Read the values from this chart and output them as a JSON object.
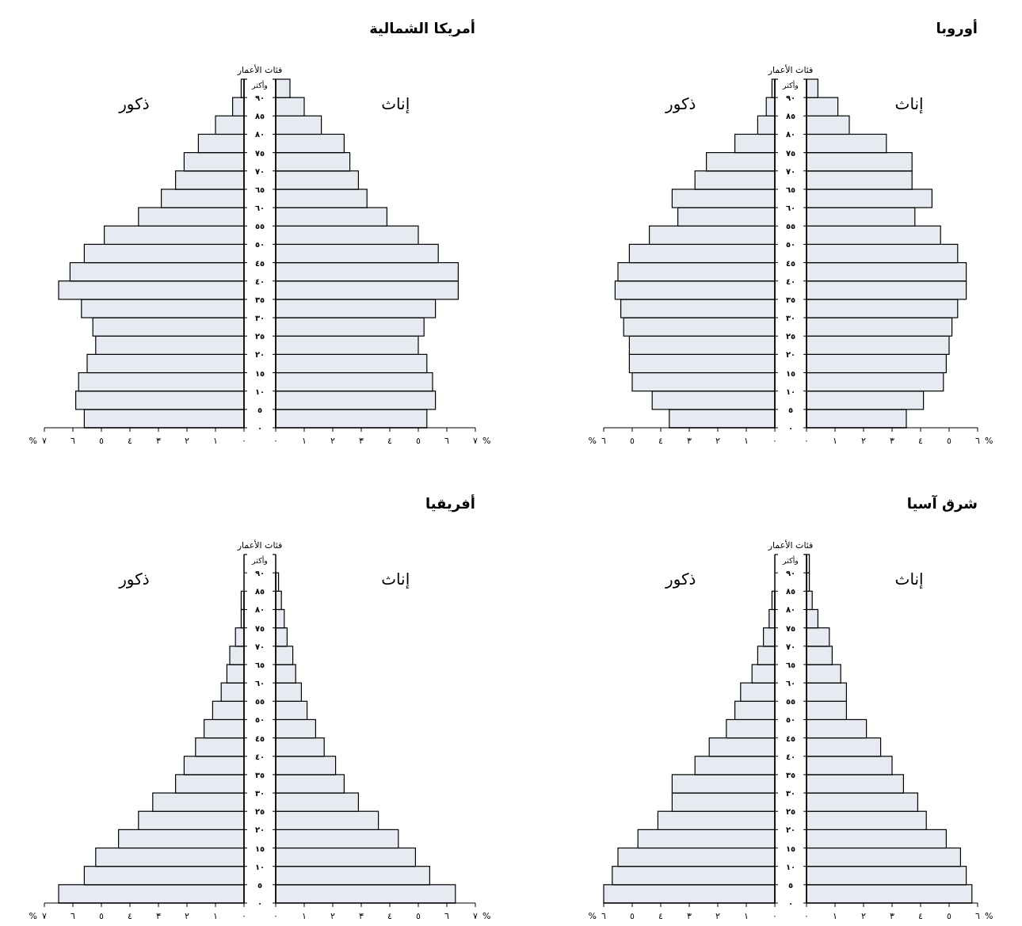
{
  "chart_data": [
    {
      "type": "histogram",
      "orientation": "horizontal",
      "xlabel": "%",
      "tick_labels": "x",
      "bins": [
        0,
        5,
        10,
        15,
        20,
        25,
        30,
        35,
        40,
        45,
        50,
        55,
        60,
        65,
        70,
        75,
        80,
        85,
        90,
        95
      ],
      "series": [
        {
          "name": "ذكور",
          "color": "#e6ebf2",
          "values": [
            5.6,
            5.9,
            5.8,
            5.5,
            5.2,
            5.3,
            5.7,
            6.5,
            6.1,
            5.6,
            4.9,
            3.7,
            2.9,
            2.4,
            2.1,
            1.6,
            1.0,
            0.4,
            0.1
          ]
        }
      ],
      "xlim": [
        7,
        0
      ],
      "xticks": [
        {
          "value": 7,
          "label": "٧"
        },
        {
          "value": 6,
          "label": "٦"
        },
        {
          "value": 5,
          "label": "٥"
        },
        {
          "value": 4,
          "label": "٤"
        },
        {
          "value": 3,
          "label": "٣"
        },
        {
          "value": 2,
          "label": "٢"
        },
        {
          "value": 1,
          "label": "١"
        },
        {
          "value": 0,
          "label": "٠"
        }
      ],
      "ylim": [
        0,
        95
      ],
      "yticks": [
        {
          "value": 0,
          "label": null
        },
        {
          "value": 5,
          "label": null
        },
        {
          "value": 10,
          "label": null
        },
        {
          "value": 15,
          "label": null
        },
        {
          "value": 20,
          "label": null
        },
        {
          "value": 25,
          "label": null
        },
        {
          "value": 30,
          "label": null
        },
        {
          "value": 35,
          "label": null
        },
        {
          "value": 40,
          "label": null
        },
        {
          "value": 45,
          "label": null
        },
        {
          "value": 50,
          "label": null
        },
        {
          "value": 55,
          "label": null
        },
        {
          "value": 60,
          "label": null
        },
        {
          "value": 65,
          "label": null
        },
        {
          "value": 70,
          "label": null
        },
        {
          "value": 75,
          "label": null
        },
        {
          "value": 80,
          "label": null
        },
        {
          "value": 85,
          "label": null
        },
        {
          "value": 90,
          "label": null
        }
      ]
    },
    {
      "type": "histogram",
      "orientation": "horizontal",
      "title": "أمريكا الشمالية",
      "ylabel": "فئات الأعمار",
      "annotations": [
        "وأكثر"
      ],
      "xlabel": "%",
      "bins": [
        0,
        5,
        10,
        15,
        20,
        25,
        30,
        35,
        40,
        45,
        50,
        55,
        60,
        65,
        70,
        75,
        80,
        85,
        90,
        95
      ],
      "series": [
        {
          "name": "إناث",
          "color": "#e6ebf2",
          "values": [
            5.3,
            5.6,
            5.5,
            5.3,
            5.0,
            5.2,
            5.6,
            6.4,
            6.4,
            5.7,
            5.0,
            3.9,
            3.2,
            2.9,
            2.6,
            2.4,
            1.6,
            1.0,
            0.5
          ]
        }
      ],
      "xlim": [
        0,
        7
      ],
      "xticks": [
        {
          "value": 0,
          "label": "٠"
        },
        {
          "value": 1,
          "label": "١"
        },
        {
          "value": 2,
          "label": "٢"
        },
        {
          "value": 3,
          "label": "٣"
        },
        {
          "value": 4,
          "label": "٤"
        },
        {
          "value": 5,
          "label": "٥"
        },
        {
          "value": 6,
          "label": "٦"
        },
        {
          "value": 7,
          "label": "٧"
        }
      ],
      "ylim": [
        0,
        95
      ],
      "yticks": [
        {
          "value": 0,
          "label": "٠"
        },
        {
          "value": 5,
          "label": "٥"
        },
        {
          "value": 10,
          "label": "١٠"
        },
        {
          "value": 15,
          "label": "١٥"
        },
        {
          "value": 20,
          "label": "٢٠"
        },
        {
          "value": 25,
          "label": "٢٥"
        },
        {
          "value": 30,
          "label": "٣٠"
        },
        {
          "value": 35,
          "label": "٣٥"
        },
        {
          "value": 40,
          "label": "٤٠"
        },
        {
          "value": 45,
          "label": "٤٥"
        },
        {
          "value": 50,
          "label": "٥٠"
        },
        {
          "value": 55,
          "label": "٥٥"
        },
        {
          "value": 60,
          "label": "٦٠"
        },
        {
          "value": 65,
          "label": "٦٥"
        },
        {
          "value": 70,
          "label": "٧٠"
        },
        {
          "value": 75,
          "label": "٧٥"
        },
        {
          "value": 80,
          "label": "٨٠"
        },
        {
          "value": 85,
          "label": "٨٥"
        },
        {
          "value": 90,
          "label": "٩٠"
        }
      ]
    },
    {
      "type": "histogram",
      "orientation": "horizontal",
      "xlabel": "%",
      "tick_labels": "x",
      "bins": [
        0,
        5,
        10,
        15,
        20,
        25,
        30,
        35,
        40,
        45,
        50,
        55,
        60,
        65,
        70,
        75,
        80,
        85,
        90,
        95
      ],
      "series": [
        {
          "name": "ذكور",
          "color": "#e6ebf2",
          "values": [
            3.7,
            4.3,
            5.0,
            5.1,
            5.1,
            5.3,
            5.4,
            5.6,
            5.5,
            5.1,
            4.4,
            3.4,
            3.6,
            2.8,
            2.4,
            1.4,
            0.6,
            0.3,
            0.1
          ]
        }
      ],
      "xlim": [
        6,
        0
      ],
      "xticks": [
        {
          "value": 6,
          "label": "٦"
        },
        {
          "value": 5,
          "label": "٥"
        },
        {
          "value": 4,
          "label": "٤"
        },
        {
          "value": 3,
          "label": "٣"
        },
        {
          "value": 2,
          "label": "٢"
        },
        {
          "value": 1,
          "label": "١"
        },
        {
          "value": 0,
          "label": "٠"
        }
      ],
      "ylim": [
        0,
        95
      ],
      "yticks": [
        {
          "value": 0,
          "label": null
        },
        {
          "value": 5,
          "label": null
        },
        {
          "value": 10,
          "label": null
        },
        {
          "value": 15,
          "label": null
        },
        {
          "value": 20,
          "label": null
        },
        {
          "value": 25,
          "label": null
        },
        {
          "value": 30,
          "label": null
        },
        {
          "value": 35,
          "label": null
        },
        {
          "value": 40,
          "label": null
        },
        {
          "value": 45,
          "label": null
        },
        {
          "value": 50,
          "label": null
        },
        {
          "value": 55,
          "label": null
        },
        {
          "value": 60,
          "label": null
        },
        {
          "value": 65,
          "label": null
        },
        {
          "value": 70,
          "label": null
        },
        {
          "value": 75,
          "label": null
        },
        {
          "value": 80,
          "label": null
        },
        {
          "value": 85,
          "label": null
        },
        {
          "value": 90,
          "label": null
        }
      ]
    },
    {
      "type": "histogram",
      "orientation": "horizontal",
      "title": "أوروبا",
      "ylabel": "فئات الأعمار",
      "annotations": [
        "وأكثر"
      ],
      "xlabel": "%",
      "bins": [
        0,
        5,
        10,
        15,
        20,
        25,
        30,
        35,
        40,
        45,
        50,
        55,
        60,
        65,
        70,
        75,
        80,
        85,
        90,
        95
      ],
      "series": [
        {
          "name": "إناث",
          "color": "#e6ebf2",
          "values": [
            3.5,
            4.1,
            4.8,
            4.9,
            5.0,
            5.1,
            5.3,
            5.6,
            5.6,
            5.3,
            4.7,
            3.8,
            4.4,
            3.7,
            3.7,
            2.8,
            1.5,
            1.1,
            0.4
          ]
        }
      ],
      "xlim": [
        0,
        6
      ],
      "xticks": [
        {
          "value": 0,
          "label": "٠"
        },
        {
          "value": 1,
          "label": "١"
        },
        {
          "value": 2,
          "label": "٢"
        },
        {
          "value": 3,
          "label": "٣"
        },
        {
          "value": 4,
          "label": "٤"
        },
        {
          "value": 5,
          "label": "٥"
        },
        {
          "value": 6,
          "label": "٦"
        }
      ],
      "ylim": [
        0,
        95
      ],
      "yticks": [
        {
          "value": 0,
          "label": "٠"
        },
        {
          "value": 5,
          "label": "٥"
        },
        {
          "value": 10,
          "label": "١٠"
        },
        {
          "value": 15,
          "label": "١٥"
        },
        {
          "value": 20,
          "label": "٢٠"
        },
        {
          "value": 25,
          "label": "٢٥"
        },
        {
          "value": 30,
          "label": "٣٠"
        },
        {
          "value": 35,
          "label": "٣٥"
        },
        {
          "value": 40,
          "label": "٤٠"
        },
        {
          "value": 45,
          "label": "٤٥"
        },
        {
          "value": 50,
          "label": "٥٠"
        },
        {
          "value": 55,
          "label": "٥٥"
        },
        {
          "value": 60,
          "label": "٦٠"
        },
        {
          "value": 65,
          "label": "٦٥"
        },
        {
          "value": 70,
          "label": "٧٠"
        },
        {
          "value": 75,
          "label": "٧٥"
        },
        {
          "value": 80,
          "label": "٨٠"
        },
        {
          "value": 85,
          "label": "٨٥"
        },
        {
          "value": 90,
          "label": "٩٠"
        }
      ]
    },
    {
      "type": "histogram",
      "orientation": "horizontal",
      "xlabel": "%",
      "tick_labels": "x",
      "bins": [
        0,
        5,
        10,
        15,
        20,
        25,
        30,
        35,
        40,
        45,
        50,
        55,
        60,
        65,
        70,
        75,
        80,
        85,
        90,
        95
      ],
      "series": [
        {
          "name": "ذكور",
          "color": "#e6ebf2",
          "values": [
            6.5,
            5.6,
            5.2,
            4.4,
            3.7,
            3.2,
            2.4,
            2.1,
            1.7,
            1.4,
            1.1,
            0.8,
            0.6,
            0.5,
            0.3,
            0.1,
            0.1,
            0,
            0
          ]
        }
      ],
      "xlim": [
        7,
        0
      ],
      "xticks": [
        {
          "value": 7,
          "label": "٧"
        },
        {
          "value": 6,
          "label": "٦"
        },
        {
          "value": 5,
          "label": "٥"
        },
        {
          "value": 4,
          "label": "٤"
        },
        {
          "value": 3,
          "label": "٣"
        },
        {
          "value": 2,
          "label": "٢"
        },
        {
          "value": 1,
          "label": "١"
        },
        {
          "value": 0,
          "label": "٠"
        }
      ],
      "ylim": [
        0,
        95
      ],
      "yticks": [
        {
          "value": 0,
          "label": null
        },
        {
          "value": 5,
          "label": null
        },
        {
          "value": 10,
          "label": null
        },
        {
          "value": 15,
          "label": null
        },
        {
          "value": 20,
          "label": null
        },
        {
          "value": 25,
          "label": null
        },
        {
          "value": 30,
          "label": null
        },
        {
          "value": 35,
          "label": null
        },
        {
          "value": 40,
          "label": null
        },
        {
          "value": 45,
          "label": null
        },
        {
          "value": 50,
          "label": null
        },
        {
          "value": 55,
          "label": null
        },
        {
          "value": 60,
          "label": null
        },
        {
          "value": 65,
          "label": null
        },
        {
          "value": 70,
          "label": null
        },
        {
          "value": 75,
          "label": null
        },
        {
          "value": 80,
          "label": null
        },
        {
          "value": 85,
          "label": null
        },
        {
          "value": 90,
          "label": null
        }
      ]
    },
    {
      "type": "histogram",
      "orientation": "horizontal",
      "title": "أفريقيا",
      "ylabel": "فئات الأعمار",
      "annotations": [
        "وأكثر"
      ],
      "xlabel": "%",
      "bins": [
        0,
        5,
        10,
        15,
        20,
        25,
        30,
        35,
        40,
        45,
        50,
        55,
        60,
        65,
        70,
        75,
        80,
        85,
        90,
        95
      ],
      "series": [
        {
          "name": "إناث",
          "color": "#e6ebf2",
          "values": [
            6.3,
            5.4,
            4.9,
            4.3,
            3.6,
            2.9,
            2.4,
            2.1,
            1.7,
            1.4,
            1.1,
            0.9,
            0.7,
            0.6,
            0.4,
            0.3,
            0.2,
            0.1,
            0
          ]
        }
      ],
      "xlim": [
        0,
        7
      ],
      "xticks": [
        {
          "value": 0,
          "label": "٠"
        },
        {
          "value": 1,
          "label": "١"
        },
        {
          "value": 2,
          "label": "٢"
        },
        {
          "value": 3,
          "label": "٣"
        },
        {
          "value": 4,
          "label": "٤"
        },
        {
          "value": 5,
          "label": "٥"
        },
        {
          "value": 6,
          "label": "٦"
        },
        {
          "value": 7,
          "label": "٧"
        }
      ],
      "ylim": [
        0,
        95
      ],
      "yticks": [
        {
          "value": 0,
          "label": "٠"
        },
        {
          "value": 5,
          "label": "٥"
        },
        {
          "value": 10,
          "label": "١٠"
        },
        {
          "value": 15,
          "label": "١٥"
        },
        {
          "value": 20,
          "label": "٢٠"
        },
        {
          "value": 25,
          "label": "٢٥"
        },
        {
          "value": 30,
          "label": "٣٠"
        },
        {
          "value": 35,
          "label": "٣٥"
        },
        {
          "value": 40,
          "label": "٤٠"
        },
        {
          "value": 45,
          "label": "٤٥"
        },
        {
          "value": 50,
          "label": "٥٠"
        },
        {
          "value": 55,
          "label": "٥٥"
        },
        {
          "value": 60,
          "label": "٦٠"
        },
        {
          "value": 65,
          "label": "٦٥"
        },
        {
          "value": 70,
          "label": "٧٠"
        },
        {
          "value": 75,
          "label": "٧٥"
        },
        {
          "value": 80,
          "label": "٨٠"
        },
        {
          "value": 85,
          "label": "٨٥"
        },
        {
          "value": 90,
          "label": "٩٠"
        }
      ]
    },
    {
      "type": "histogram",
      "orientation": "horizontal",
      "xlabel": "%",
      "tick_labels": "x",
      "bins": [
        0,
        5,
        10,
        15,
        20,
        25,
        30,
        35,
        40,
        45,
        50,
        55,
        60,
        65,
        70,
        75,
        80,
        85,
        90,
        95
      ],
      "series": [
        {
          "name": "ذكور",
          "color": "#e6ebf2",
          "values": [
            6.0,
            5.7,
            5.5,
            4.8,
            4.1,
            3.6,
            3.6,
            2.8,
            2.3,
            1.7,
            1.4,
            1.2,
            0.8,
            0.6,
            0.4,
            0.2,
            0.1,
            0,
            0
          ]
        }
      ],
      "xlim": [
        6,
        0
      ],
      "xticks": [
        {
          "value": 6,
          "label": "٦"
        },
        {
          "value": 5,
          "label": "٥"
        },
        {
          "value": 4,
          "label": "٤"
        },
        {
          "value": 3,
          "label": "٣"
        },
        {
          "value": 2,
          "label": "٢"
        },
        {
          "value": 1,
          "label": "١"
        },
        {
          "value": 0,
          "label": "٠"
        }
      ],
      "ylim": [
        0,
        95
      ],
      "yticks": [
        {
          "value": 0,
          "label": null
        },
        {
          "value": 5,
          "label": null
        },
        {
          "value": 10,
          "label": null
        },
        {
          "value": 15,
          "label": null
        },
        {
          "value": 20,
          "label": null
        },
        {
          "value": 25,
          "label": null
        },
        {
          "value": 30,
          "label": null
        },
        {
          "value": 35,
          "label": null
        },
        {
          "value": 40,
          "label": null
        },
        {
          "value": 45,
          "label": null
        },
        {
          "value": 50,
          "label": null
        },
        {
          "value": 55,
          "label": null
        },
        {
          "value": 60,
          "label": null
        },
        {
          "value": 65,
          "label": null
        },
        {
          "value": 70,
          "label": null
        },
        {
          "value": 75,
          "label": null
        },
        {
          "value": 80,
          "label": null
        },
        {
          "value": 85,
          "label": null
        },
        {
          "value": 90,
          "label": null
        }
      ]
    },
    {
      "type": "histogram",
      "orientation": "horizontal",
      "title": "شرق آسيا",
      "ylabel": "فئات الأعمار",
      "annotations": [
        "وأكثر"
      ],
      "xlabel": "%",
      "bins": [
        0,
        5,
        10,
        15,
        20,
        25,
        30,
        35,
        40,
        45,
        50,
        55,
        60,
        65,
        70,
        75,
        80,
        85,
        90,
        95
      ],
      "series": [
        {
          "name": "إناث",
          "color": "#e6ebf2",
          "values": [
            5.8,
            5.6,
            5.4,
            4.9,
            4.2,
            3.9,
            3.4,
            3.0,
            2.6,
            2.1,
            1.4,
            1.4,
            1.2,
            0.9,
            0.8,
            0.4,
            0.2,
            0.1,
            0.1
          ]
        }
      ],
      "xlim": [
        0,
        6
      ],
      "xticks": [
        {
          "value": 0,
          "label": "٠"
        },
        {
          "value": 1,
          "label": "١"
        },
        {
          "value": 2,
          "label": "٢"
        },
        {
          "value": 3,
          "label": "٣"
        },
        {
          "value": 4,
          "label": "٤"
        },
        {
          "value": 5,
          "label": "٥"
        },
        {
          "value": 6,
          "label": "٦"
        }
      ],
      "ylim": [
        0,
        95
      ],
      "yticks": [
        {
          "value": 0,
          "label": "٠"
        },
        {
          "value": 5,
          "label": "٥"
        },
        {
          "value": 10,
          "label": "١٠"
        },
        {
          "value": 15,
          "label": "١٥"
        },
        {
          "value": 20,
          "label": "٢٠"
        },
        {
          "value": 25,
          "label": "٢٥"
        },
        {
          "value": 30,
          "label": "٣٠"
        },
        {
          "value": 35,
          "label": "٣٥"
        },
        {
          "value": 40,
          "label": "٤٠"
        },
        {
          "value": 45,
          "label": "٤٥"
        },
        {
          "value": 50,
          "label": "٥٠"
        },
        {
          "value": 55,
          "label": "٥٥"
        },
        {
          "value": 60,
          "label": "٦٠"
        },
        {
          "value": 65,
          "label": "٦٥"
        },
        {
          "value": 70,
          "label": "٧٠"
        },
        {
          "value": 75,
          "label": "٧٥"
        },
        {
          "value": 80,
          "label": "٨٠"
        },
        {
          "value": 85,
          "label": "٨٥"
        },
        {
          "value": 90,
          "label": "٩٠"
        }
      ]
    }
  ]
}
